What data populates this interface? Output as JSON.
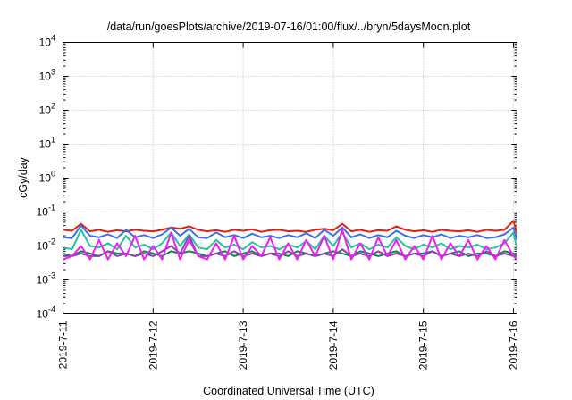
{
  "chart_data": {
    "type": "line",
    "title": "/data/run/goesPlots/archive/2019-07-16/01:00/flux/../bryn/5daysMoon.plot",
    "xlabel": "Coordinated Universal Time (UTC)",
    "ylabel": "cGy/day",
    "yscale": "log",
    "ylim": [
      0.0001,
      10000
    ],
    "xlim": [
      "2019-7-11",
      "2019-7-16 01:00"
    ],
    "grid": true,
    "legend": "none",
    "x_ticks": [
      "2019-7-11",
      "2019-7-12",
      "2019-7-13",
      "2019-7-14",
      "2019-7-15",
      "2019-7-16"
    ],
    "y_ticks": [
      {
        "value": 0.0001,
        "mant": "10",
        "exp": "-4"
      },
      {
        "value": 0.001,
        "mant": "10",
        "exp": "-3"
      },
      {
        "value": 0.01,
        "mant": "10",
        "exp": "-2"
      },
      {
        "value": 0.1,
        "mant": "10",
        "exp": "-1"
      },
      {
        "value": 1,
        "mant": "10",
        "exp": "0"
      },
      {
        "value": 10,
        "mant": "10",
        "exp": "1"
      },
      {
        "value": 100,
        "mant": "10",
        "exp": "2"
      },
      {
        "value": 1000,
        "mant": "10",
        "exp": "3"
      },
      {
        "value": 10000,
        "mant": "10",
        "exp": "4"
      }
    ],
    "x_days": [
      0,
      0.1,
      0.2,
      0.3,
      0.4,
      0.5,
      0.6,
      0.7,
      0.8,
      0.9,
      1.0,
      1.1,
      1.2,
      1.3,
      1.4,
      1.5,
      1.6,
      1.7,
      1.8,
      1.9,
      2.0,
      2.1,
      2.2,
      2.3,
      2.4,
      2.5,
      2.6,
      2.7,
      2.8,
      2.9,
      3.0,
      3.1,
      3.2,
      3.3,
      3.4,
      3.5,
      3.6,
      3.7,
      3.8,
      3.9,
      4.0,
      4.1,
      4.2,
      4.3,
      4.4,
      4.5,
      4.6,
      4.7,
      4.8,
      4.9,
      5.0,
      5.04
    ],
    "series": [
      {
        "color": "#e51e10",
        "values": [
          0.03,
          0.028,
          0.045,
          0.027,
          0.03,
          0.026,
          0.029,
          0.027,
          0.03,
          0.028,
          0.027,
          0.03,
          0.035,
          0.032,
          0.038,
          0.03,
          0.027,
          0.029,
          0.026,
          0.03,
          0.028,
          0.031,
          0.026,
          0.029,
          0.03,
          0.027,
          0.028,
          0.026,
          0.03,
          0.032,
          0.029,
          0.045,
          0.027,
          0.03,
          0.026,
          0.029,
          0.028,
          0.038,
          0.03,
          0.027,
          0.029,
          0.026,
          0.03,
          0.028,
          0.027,
          0.029,
          0.026,
          0.03,
          0.028,
          0.03,
          0.055,
          0.024
        ]
      },
      {
        "color": "#0a8a4a",
        "values": [
          0.006,
          0.005,
          0.007,
          0.006,
          0.005,
          0.007,
          0.006,
          0.006,
          0.005,
          0.007,
          0.006,
          0.005,
          0.007,
          0.006,
          0.007,
          0.006,
          0.005,
          0.006,
          0.007,
          0.005,
          0.006,
          0.007,
          0.005,
          0.006,
          0.006,
          0.005,
          0.007,
          0.006,
          0.005,
          0.006,
          0.007,
          0.006,
          0.005,
          0.007,
          0.006,
          0.005,
          0.006,
          0.007,
          0.005,
          0.006,
          0.006,
          0.007,
          0.005,
          0.006,
          0.007,
          0.005,
          0.006,
          0.006,
          0.005,
          0.007,
          0.006,
          0.005
        ]
      },
      {
        "color": "#22c4a0",
        "values": [
          0.009,
          0.008,
          0.03,
          0.01,
          0.009,
          0.012,
          0.008,
          0.02,
          0.009,
          0.011,
          0.008,
          0.012,
          0.025,
          0.01,
          0.022,
          0.009,
          0.008,
          0.015,
          0.009,
          0.011,
          0.008,
          0.013,
          0.009,
          0.01,
          0.008,
          0.011,
          0.009,
          0.014,
          0.008,
          0.02,
          0.01,
          0.025,
          0.009,
          0.012,
          0.008,
          0.011,
          0.009,
          0.018,
          0.01,
          0.008,
          0.011,
          0.009,
          0.012,
          0.008,
          0.01,
          0.009,
          0.011,
          0.008,
          0.009,
          0.012,
          0.025,
          0.008
        ]
      },
      {
        "color": "#3b70e6",
        "values": [
          0.018,
          0.017,
          0.04,
          0.02,
          0.018,
          0.022,
          0.017,
          0.03,
          0.018,
          0.021,
          0.017,
          0.022,
          0.035,
          0.02,
          0.032,
          0.018,
          0.017,
          0.025,
          0.018,
          0.021,
          0.017,
          0.023,
          0.018,
          0.02,
          0.017,
          0.021,
          0.018,
          0.024,
          0.017,
          0.03,
          0.02,
          0.035,
          0.018,
          0.022,
          0.017,
          0.021,
          0.018,
          0.028,
          0.02,
          0.017,
          0.021,
          0.018,
          0.022,
          0.017,
          0.02,
          0.018,
          0.021,
          0.017,
          0.018,
          0.022,
          0.035,
          0.015
        ]
      },
      {
        "color": "#8a40b8",
        "values": [
          0.005,
          0.005,
          0.006,
          0.005,
          0.005,
          0.007,
          0.005,
          0.006,
          0.005,
          0.006,
          0.005,
          0.007,
          0.01,
          0.006,
          0.02,
          0.005,
          0.005,
          0.006,
          0.005,
          0.007,
          0.005,
          0.006,
          0.005,
          0.006,
          0.005,
          0.007,
          0.005,
          0.006,
          0.005,
          0.006,
          0.005,
          0.008,
          0.005,
          0.006,
          0.005,
          0.007,
          0.005,
          0.006,
          0.005,
          0.006,
          0.005,
          0.007,
          0.005,
          0.006,
          0.005,
          0.006,
          0.005,
          0.007,
          0.005,
          0.006,
          0.005,
          0.005
        ]
      },
      {
        "color": "#f01ef0",
        "values": [
          0.004,
          0.005,
          0.01,
          0.004,
          0.015,
          0.004,
          0.012,
          0.005,
          0.02,
          0.004,
          0.01,
          0.004,
          0.025,
          0.004,
          0.015,
          0.005,
          0.004,
          0.012,
          0.004,
          0.02,
          0.004,
          0.01,
          0.005,
          0.018,
          0.004,
          0.012,
          0.004,
          0.015,
          0.005,
          0.02,
          0.004,
          0.03,
          0.004,
          0.012,
          0.004,
          0.018,
          0.005,
          0.015,
          0.004,
          0.01,
          0.004,
          0.02,
          0.004,
          0.012,
          0.005,
          0.015,
          0.004,
          0.01,
          0.004,
          0.015,
          0.005,
          0.004
        ]
      }
    ]
  }
}
